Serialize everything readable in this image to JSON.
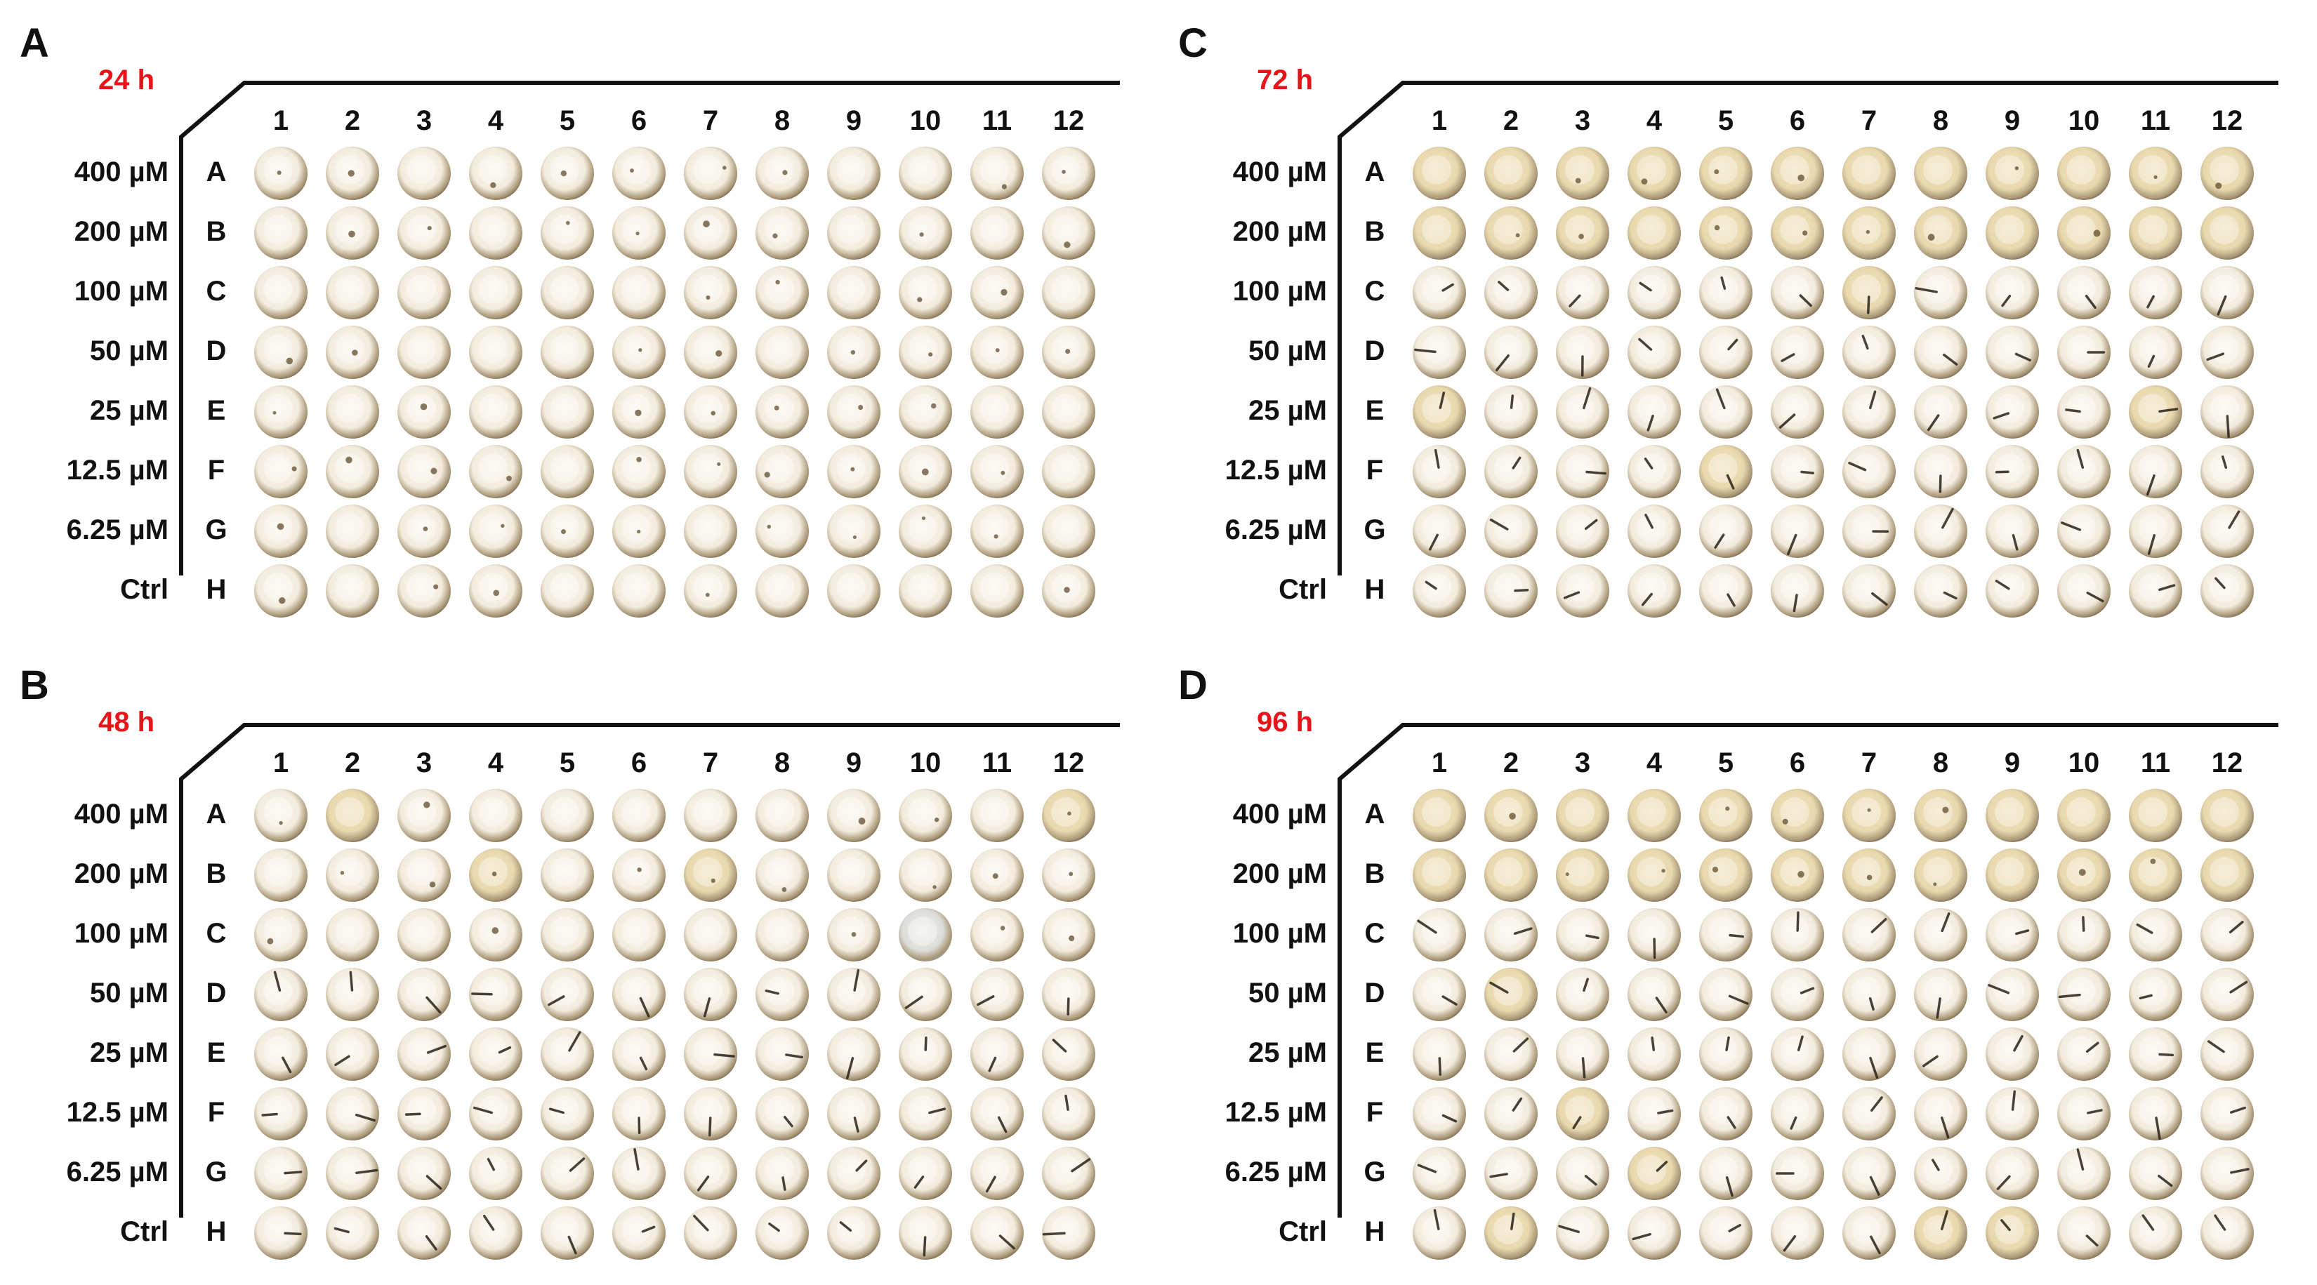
{
  "panels": [
    {
      "label": "A",
      "time": "24 h",
      "columns": [
        "1",
        "2",
        "3",
        "4",
        "5",
        "6",
        "7",
        "8",
        "9",
        "10",
        "11",
        "12"
      ],
      "rows": [
        {
          "conc": "400 µM",
          "letter": "A"
        },
        {
          "conc": "200 µM",
          "letter": "B"
        },
        {
          "conc": "100 µM",
          "letter": "C"
        },
        {
          "conc": "50 µM",
          "letter": "D"
        },
        {
          "conc": "25 µM",
          "letter": "E"
        },
        {
          "conc": "12.5 µM",
          "letter": "F"
        },
        {
          "conc": "6.25 µM",
          "letter": "G"
        },
        {
          "conc": "Ctrl",
          "letter": "H"
        }
      ]
    },
    {
      "label": "C",
      "time": "72 h",
      "columns": [
        "1",
        "2",
        "3",
        "4",
        "5",
        "6",
        "7",
        "8",
        "9",
        "10",
        "11",
        "12"
      ],
      "rows": [
        {
          "conc": "400 µM",
          "letter": "A"
        },
        {
          "conc": "200 µM",
          "letter": "B"
        },
        {
          "conc": "100 µM",
          "letter": "C"
        },
        {
          "conc": "50 µM",
          "letter": "D"
        },
        {
          "conc": "25 µM",
          "letter": "E"
        },
        {
          "conc": "12.5 µM",
          "letter": "F"
        },
        {
          "conc": "6.25 µM",
          "letter": "G"
        },
        {
          "conc": "Ctrl",
          "letter": "H"
        }
      ]
    },
    {
      "label": "B",
      "time": "48 h",
      "columns": [
        "1",
        "2",
        "3",
        "4",
        "5",
        "6",
        "7",
        "8",
        "9",
        "10",
        "11",
        "12"
      ],
      "rows": [
        {
          "conc": "400 µM",
          "letter": "A"
        },
        {
          "conc": "200 µM",
          "letter": "B"
        },
        {
          "conc": "100 µM",
          "letter": "C"
        },
        {
          "conc": "50 µM",
          "letter": "D"
        },
        {
          "conc": "25 µM",
          "letter": "E"
        },
        {
          "conc": "12.5 µM",
          "letter": "F"
        },
        {
          "conc": "6.25 µM",
          "letter": "G"
        },
        {
          "conc": "Ctrl",
          "letter": "H"
        }
      ]
    },
    {
      "label": "D",
      "time": "96 h",
      "columns": [
        "1",
        "2",
        "3",
        "4",
        "5",
        "6",
        "7",
        "8",
        "9",
        "10",
        "11",
        "12"
      ],
      "rows": [
        {
          "conc": "400 µM",
          "letter": "A"
        },
        {
          "conc": "200 µM",
          "letter": "B"
        },
        {
          "conc": "100 µM",
          "letter": "C"
        },
        {
          "conc": "50 µM",
          "letter": "D"
        },
        {
          "conc": "25 µM",
          "letter": "E"
        },
        {
          "conc": "12.5 µM",
          "letter": "F"
        },
        {
          "conc": "6.25 µM",
          "letter": "G"
        },
        {
          "conc": "Ctrl",
          "letter": "H"
        }
      ]
    }
  ],
  "colors": {
    "time_label": "#e8141a",
    "well_light": "#fbf8f1",
    "well_mid": "#e9dcc0",
    "well_rim": "#6b5a42",
    "well_tinted": "#f1e4c2",
    "well_grey": "#dcdcd8",
    "larva": "#2a2218",
    "frame": "#111111"
  }
}
